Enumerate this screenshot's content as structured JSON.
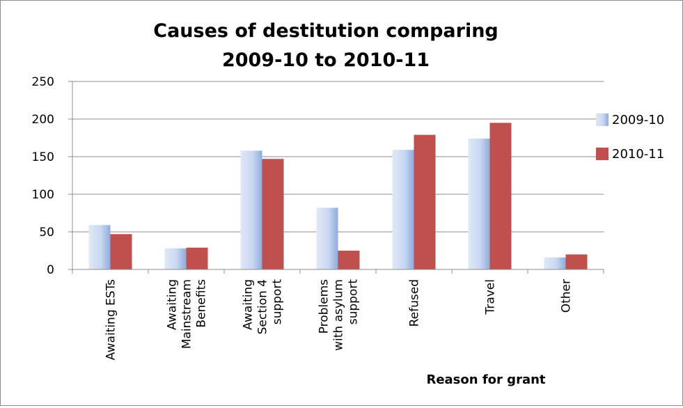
{
  "chart_data": {
    "type": "bar",
    "title": [
      "Causes of destitution comparing",
      "2009-10 to 2010-11"
    ],
    "xlabel": "Reason for grant",
    "ylabel": "",
    "ylim": [
      0,
      250
    ],
    "yticks": [
      0,
      50,
      100,
      150,
      200,
      250
    ],
    "grid": true,
    "legend_position": "right",
    "categories": [
      [
        "Awaiting ESTs"
      ],
      [
        "Awaiting",
        "Mainstream",
        "Benefits"
      ],
      [
        "Awaiting",
        "Section 4",
        "support"
      ],
      [
        "Problems",
        "with asylum",
        "support"
      ],
      [
        "Refused"
      ],
      [
        "Travel"
      ],
      [
        "Other"
      ]
    ],
    "series": [
      {
        "name": "2009-10",
        "values": [
          59,
          28,
          158,
          82,
          159,
          174,
          16
        ],
        "color": "#b7c9ea"
      },
      {
        "name": "2010-11",
        "values": [
          47,
          29,
          147,
          25,
          179,
          195,
          20
        ],
        "color": "#c0504d"
      }
    ]
  }
}
